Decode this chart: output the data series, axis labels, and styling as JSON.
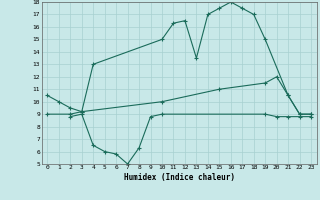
{
  "bg_color": "#c8e8e8",
  "line_color": "#1a6b5a",
  "grid_color": "#a8d0d0",
  "xlabel": "Humidex (Indice chaleur)",
  "xlim": [
    -0.5,
    23.5
  ],
  "ylim": [
    5,
    18
  ],
  "yticks": [
    5,
    6,
    7,
    8,
    9,
    10,
    11,
    12,
    13,
    14,
    15,
    16,
    17,
    18
  ],
  "xticks": [
    0,
    1,
    2,
    3,
    4,
    5,
    6,
    7,
    8,
    9,
    10,
    11,
    12,
    13,
    14,
    15,
    16,
    17,
    18,
    19,
    20,
    21,
    22,
    23
  ],
  "curve_top_x": [
    0,
    1,
    2,
    3,
    4,
    10,
    11,
    12,
    13,
    14,
    15,
    16,
    17,
    18,
    19,
    21,
    22,
    23
  ],
  "curve_top_y": [
    10.5,
    10.0,
    9.5,
    9.2,
    13.0,
    15.0,
    16.3,
    16.5,
    13.5,
    17.0,
    17.5,
    18.0,
    17.5,
    17.0,
    15.0,
    10.5,
    9.0,
    9.0
  ],
  "curve_mid_x": [
    0,
    2,
    3,
    10,
    15,
    19,
    20,
    21,
    22,
    23
  ],
  "curve_mid_y": [
    9.0,
    9.0,
    9.2,
    10.0,
    11.0,
    11.5,
    12.0,
    10.5,
    9.0,
    9.0
  ],
  "curve_bot_x": [
    2,
    3,
    4,
    5,
    6,
    7,
    8,
    9,
    10,
    19,
    20,
    21,
    22,
    23
  ],
  "curve_bot_y": [
    8.8,
    9.0,
    6.5,
    6.0,
    5.8,
    5.0,
    6.3,
    8.8,
    9.0,
    9.0,
    8.8,
    8.8,
    8.8,
    8.8
  ]
}
